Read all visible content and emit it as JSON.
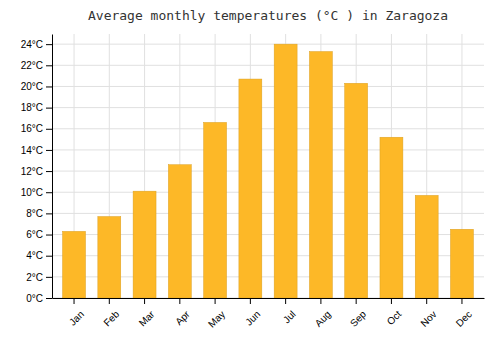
{
  "chart_data": {
    "type": "bar",
    "title": "Average monthly temperatures (°C ) in Zaragoza",
    "categories": [
      "Jan",
      "Feb",
      "Mar",
      "Apr",
      "May",
      "Jun",
      "Jul",
      "Aug",
      "Sep",
      "Oct",
      "Nov",
      "Dec"
    ],
    "values": [
      6.3,
      7.7,
      10.1,
      12.6,
      16.6,
      20.7,
      24.0,
      23.3,
      20.3,
      15.2,
      9.7,
      6.5
    ],
    "color": "#FDB827",
    "ylim": [
      0,
      24.96
    ],
    "yticks": [
      {
        "value": 0,
        "label": "0°C"
      },
      {
        "value": 2,
        "label": "2°C"
      },
      {
        "value": 4,
        "label": "4°C"
      },
      {
        "value": 6,
        "label": "6°C"
      },
      {
        "value": 8,
        "label": "8°C"
      },
      {
        "value": 10,
        "label": "10°C"
      },
      {
        "value": 12,
        "label": "12°C"
      },
      {
        "value": 14,
        "label": "14°C"
      },
      {
        "value": 16,
        "label": "16°C"
      },
      {
        "value": 18,
        "label": "18°C"
      },
      {
        "value": 20,
        "label": "20°C"
      },
      {
        "value": 22,
        "label": "22°C"
      },
      {
        "value": 24,
        "label": "24°C"
      }
    ],
    "grid": true
  }
}
